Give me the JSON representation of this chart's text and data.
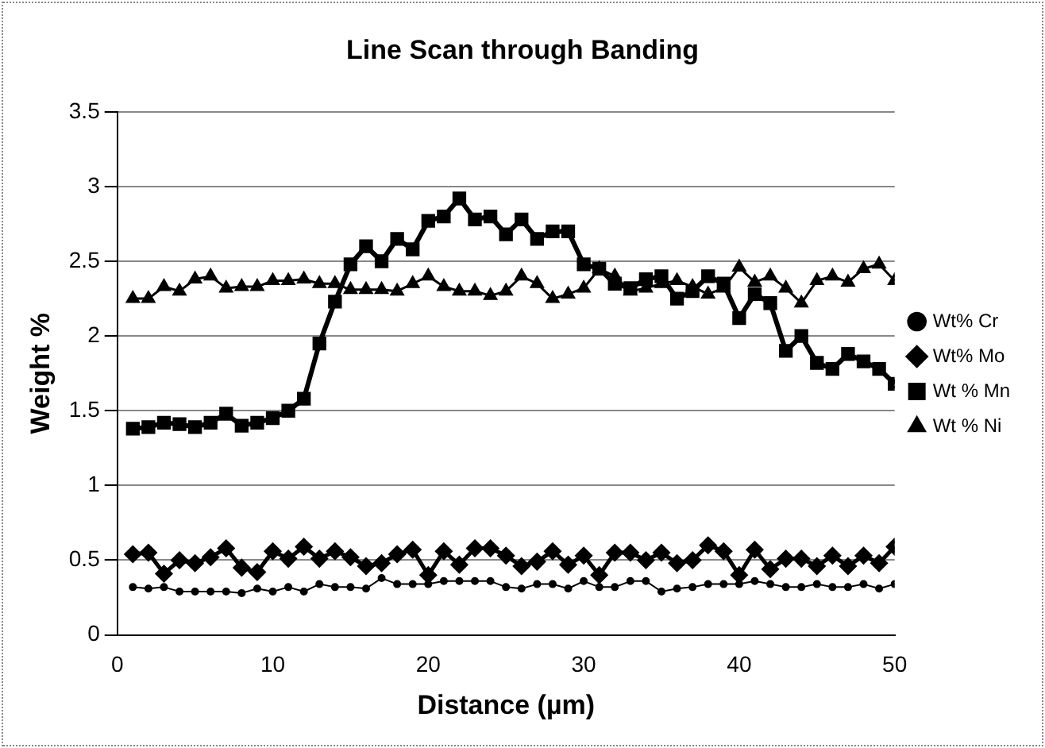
{
  "chart_data": {
    "type": "line",
    "title": "Line Scan through Banding",
    "xlabel": "Distance (µm)",
    "ylabel": "Weight %",
    "x": [
      1,
      2,
      3,
      4,
      5,
      6,
      7,
      8,
      9,
      10,
      11,
      12,
      13,
      14,
      15,
      16,
      17,
      18,
      19,
      20,
      21,
      22,
      23,
      24,
      25,
      26,
      27,
      28,
      29,
      30,
      31,
      32,
      33,
      34,
      35,
      36,
      37,
      38,
      39,
      40,
      41,
      42,
      43,
      44,
      45,
      46,
      47,
      48,
      49,
      50
    ],
    "xlim": [
      0,
      50
    ],
    "xticks": [
      0,
      10,
      20,
      30,
      40,
      50
    ],
    "ylim": [
      0,
      3.5
    ],
    "yticks": [
      0,
      0.5,
      1,
      1.5,
      2,
      2.5,
      3,
      3.5
    ],
    "grid": "y",
    "legend": "right",
    "series": [
      {
        "name": "Wt% Cr",
        "color": "#000000",
        "marker": "circle",
        "values": [
          0.32,
          0.31,
          0.32,
          0.29,
          0.29,
          0.29,
          0.29,
          0.28,
          0.31,
          0.29,
          0.32,
          0.29,
          0.34,
          0.32,
          0.32,
          0.31,
          0.38,
          0.34,
          0.34,
          0.34,
          0.36,
          0.36,
          0.36,
          0.36,
          0.32,
          0.31,
          0.34,
          0.34,
          0.31,
          0.36,
          0.32,
          0.32,
          0.36,
          0.36,
          0.29,
          0.31,
          0.32,
          0.34,
          0.34,
          0.34,
          0.36,
          0.34,
          0.32,
          0.32,
          0.34,
          0.32,
          0.32,
          0.34,
          0.31,
          0.34
        ]
      },
      {
        "name": "Wt% Mo",
        "color": "#000000",
        "marker": "diamond",
        "values": [
          0.54,
          0.55,
          0.41,
          0.5,
          0.48,
          0.52,
          0.58,
          0.45,
          0.42,
          0.56,
          0.51,
          0.59,
          0.51,
          0.56,
          0.52,
          0.46,
          0.48,
          0.54,
          0.57,
          0.4,
          0.56,
          0.47,
          0.58,
          0.58,
          0.53,
          0.46,
          0.49,
          0.56,
          0.47,
          0.53,
          0.4,
          0.55,
          0.55,
          0.5,
          0.55,
          0.48,
          0.5,
          0.6,
          0.56,
          0.4,
          0.57,
          0.44,
          0.51,
          0.51,
          0.46,
          0.53,
          0.46,
          0.53,
          0.48,
          0.59
        ]
      },
      {
        "name": "Wt % Mn",
        "color": "#000000",
        "marker": "square",
        "values": [
          1.38,
          1.39,
          1.42,
          1.41,
          1.39,
          1.42,
          1.48,
          1.4,
          1.42,
          1.45,
          1.5,
          1.58,
          1.95,
          2.23,
          2.48,
          2.6,
          2.5,
          2.65,
          2.58,
          2.77,
          2.8,
          2.92,
          2.78,
          2.8,
          2.68,
          2.78,
          2.65,
          2.7,
          2.7,
          2.48,
          2.45,
          2.35,
          2.32,
          2.38,
          2.4,
          2.25,
          2.3,
          2.4,
          2.35,
          2.12,
          2.28,
          2.22,
          1.9,
          2.0,
          1.82,
          1.78,
          1.88,
          1.83,
          1.78,
          1.68
        ]
      },
      {
        "name": "Wt % Ni",
        "color": "#000000",
        "marker": "triangle",
        "values": [
          2.25,
          2.25,
          2.33,
          2.3,
          2.38,
          2.4,
          2.32,
          2.33,
          2.33,
          2.37,
          2.37,
          2.38,
          2.35,
          2.35,
          2.31,
          2.31,
          2.31,
          2.3,
          2.35,
          2.4,
          2.33,
          2.3,
          2.3,
          2.27,
          2.3,
          2.4,
          2.35,
          2.25,
          2.28,
          2.32,
          2.45,
          2.4,
          2.3,
          2.32,
          2.35,
          2.37,
          2.33,
          2.28,
          2.32,
          2.46,
          2.36,
          2.4,
          2.32,
          2.22,
          2.37,
          2.4,
          2.36,
          2.45,
          2.48,
          2.37
        ]
      }
    ]
  }
}
